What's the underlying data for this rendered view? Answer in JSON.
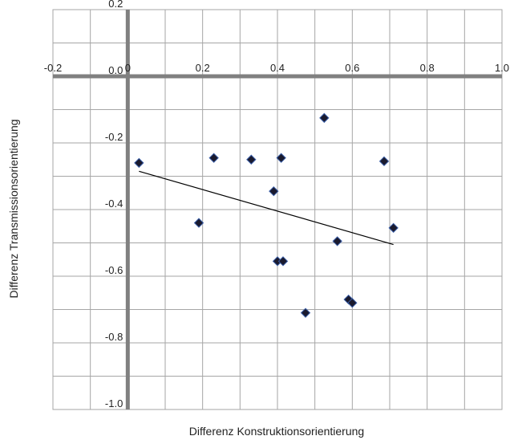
{
  "chart_data": {
    "type": "scatter",
    "title": "",
    "xlabel": "Differenz Konstruktionsorientierung",
    "ylabel": "Differenz Transmissionsorientierung",
    "xlim": [
      -0.2,
      1.0
    ],
    "ylim": [
      -1.0,
      0.2
    ],
    "x_tick_labels": [
      "-0.2",
      "0",
      "0.2",
      "0.4",
      "0.6",
      "0.8",
      "1.0"
    ],
    "y_tick_labels": [
      "0.2",
      "0.0",
      "-0.2",
      "-0.4",
      "-0.6",
      "-0.8",
      "-1.0"
    ],
    "grid": true,
    "marker": "diamond",
    "colors": {
      "marker_fill": "#1a1a2e",
      "marker_edge": "#3a5ea8",
      "axis": "#808080",
      "grid": "#a6a6a6",
      "trendline": "#000000"
    },
    "points": [
      {
        "x": 0.03,
        "y": -0.26
      },
      {
        "x": 0.19,
        "y": -0.44
      },
      {
        "x": 0.23,
        "y": -0.245
      },
      {
        "x": 0.33,
        "y": -0.25
      },
      {
        "x": 0.39,
        "y": -0.345
      },
      {
        "x": 0.41,
        "y": -0.245
      },
      {
        "x": 0.4,
        "y": -0.555
      },
      {
        "x": 0.415,
        "y": -0.555
      },
      {
        "x": 0.475,
        "y": -0.71
      },
      {
        "x": 0.525,
        "y": -0.125
      },
      {
        "x": 0.56,
        "y": -0.495
      },
      {
        "x": 0.59,
        "y": -0.67
      },
      {
        "x": 0.6,
        "y": -0.68
      },
      {
        "x": 0.685,
        "y": -0.255
      },
      {
        "x": 0.71,
        "y": -0.455
      }
    ],
    "trendline": {
      "x": [
        0.03,
        0.71
      ],
      "y": [
        -0.285,
        -0.505
      ]
    }
  }
}
